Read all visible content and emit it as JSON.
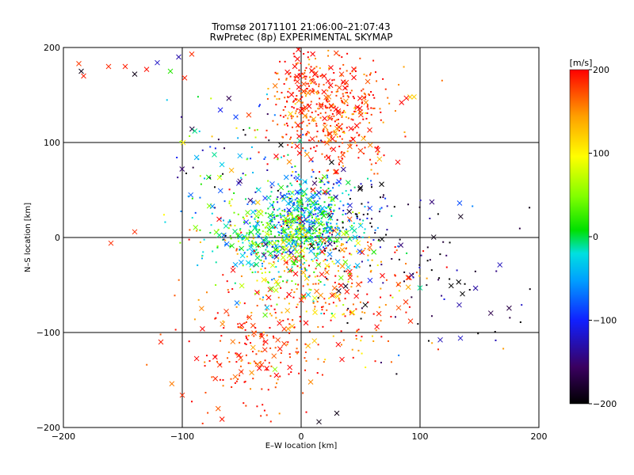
{
  "chart_data": {
    "type": "scatter",
    "title": "Tromsø 20171101 21:06:00–21:07:43",
    "subtitle": "RwPretec (8p) EXPERIMENTAL SKYMAP",
    "xlabel": "E–W location [km]",
    "ylabel": "N–S location [km]",
    "xlim": [
      -200,
      200
    ],
    "ylim": [
      -200,
      200
    ],
    "xticks": [
      -200,
      -100,
      0,
      100,
      200
    ],
    "yticks": [
      -200,
      -100,
      0,
      100,
      200
    ],
    "grid": true,
    "colorbar": {
      "label": "[m/s]",
      "range": [
        -200,
        200
      ],
      "ticks": [
        200,
        100,
        0,
        -100,
        -200
      ],
      "colormap": [
        "#000000",
        "#3a0060",
        "#1020ff",
        "#00a0ff",
        "#00e0e0",
        "#00e000",
        "#80ff00",
        "#ffff00",
        "#ffa000",
        "#ff0000"
      ]
    },
    "clusters": [
      {
        "cx": 25,
        "cy": 130,
        "sx": 25,
        "sy": 30,
        "n": 420,
        "v": 180,
        "vs": 30
      },
      {
        "cx": 0,
        "cy": 165,
        "sx": 12,
        "sy": 25,
        "n": 90,
        "v": 185,
        "vs": 25
      },
      {
        "cx": 5,
        "cy": 25,
        "sx": 18,
        "sy": 22,
        "n": 420,
        "v": -30,
        "vs": 55
      },
      {
        "cx": -15,
        "cy": 0,
        "sx": 30,
        "sy": 15,
        "n": 320,
        "v": 10,
        "vs": 60
      },
      {
        "cx": -60,
        "cy": 60,
        "sx": 25,
        "sy": 40,
        "n": 130,
        "v": -40,
        "vs": 90
      },
      {
        "cx": 20,
        "cy": -60,
        "sx": 45,
        "sy": 40,
        "n": 300,
        "v": 175,
        "vs": 40
      },
      {
        "cx": -40,
        "cy": -130,
        "sx": 30,
        "sy": 30,
        "n": 160,
        "v": 185,
        "vs": 25
      },
      {
        "cx": 110,
        "cy": -50,
        "sx": 40,
        "sy": 40,
        "n": 80,
        "v": -170,
        "vs": 40
      },
      {
        "cx": 50,
        "cy": 20,
        "sx": 25,
        "sy": 25,
        "n": 90,
        "v": -150,
        "vs": 80
      },
      {
        "cx": -10,
        "cy": -30,
        "sx": 30,
        "sy": 25,
        "n": 150,
        "v": 60,
        "vs": 80
      }
    ],
    "markers": [
      {
        "x": -187,
        "y": 183,
        "v": 180,
        "m": "x"
      },
      {
        "x": -185,
        "y": 175,
        "v": -190,
        "m": "x"
      },
      {
        "x": -183,
        "y": 170,
        "v": 190,
        "m": "x"
      },
      {
        "x": -162,
        "y": 180,
        "v": 185,
        "m": "x"
      },
      {
        "x": -148,
        "y": 180,
        "v": 190,
        "m": "x"
      },
      {
        "x": -140,
        "y": 172,
        "v": -190,
        "m": "x"
      },
      {
        "x": -130,
        "y": 177,
        "v": 195,
        "m": "x"
      },
      {
        "x": -121,
        "y": 184,
        "v": -120,
        "m": "x"
      },
      {
        "x": -110,
        "y": 175,
        "v": 20,
        "m": "x"
      },
      {
        "x": -103,
        "y": 190,
        "v": -130,
        "m": "x"
      },
      {
        "x": -98,
        "y": 168,
        "v": 190,
        "m": "x"
      },
      {
        "x": -92,
        "y": 193,
        "v": 185,
        "m": "x"
      },
      {
        "x": -160,
        "y": -6,
        "v": 185,
        "m": "x"
      },
      {
        "x": -140,
        "y": 6,
        "v": 185,
        "m": "x"
      },
      {
        "x": -118,
        "y": -110,
        "v": 190,
        "m": "x"
      },
      {
        "x": -100,
        "y": -166,
        "v": 185,
        "m": "x"
      },
      {
        "x": 95,
        "y": 148,
        "v": 120,
        "m": "x"
      },
      {
        "x": 82,
        "y": -74,
        "v": 170,
        "m": "x"
      },
      {
        "x": 92,
        "y": -88,
        "v": 185,
        "m": "x"
      },
      {
        "x": 100,
        "y": -53,
        "v": -10,
        "m": "x"
      },
      {
        "x": 133,
        "y": -71,
        "v": -130,
        "m": "x"
      },
      {
        "x": 134,
        "y": -106,
        "v": -120,
        "m": "x"
      },
      {
        "x": 30,
        "y": -185,
        "v": -190,
        "m": "x"
      },
      {
        "x": 15,
        "y": -194,
        "v": -190,
        "m": "x"
      },
      {
        "x": 20,
        "y": 48,
        "v": 185,
        "m": "x"
      },
      {
        "x": 10,
        "y": 50,
        "v": 190,
        "m": "x"
      }
    ]
  }
}
